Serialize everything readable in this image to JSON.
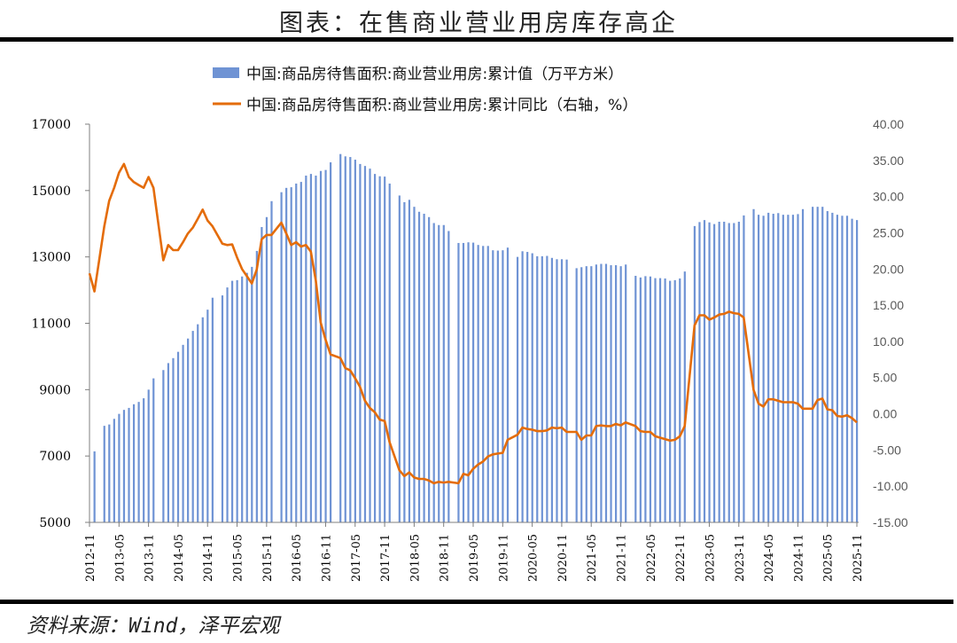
{
  "title": "图表：在售商业营业用房库存高企",
  "source": "资料来源：Wind，泽平宏观",
  "chart_data": {
    "type": "bar+line",
    "legend_position": "top",
    "grid": false,
    "colors": {
      "bar": "#6f93d4",
      "line": "#e46c0a"
    },
    "left_axis": {
      "ylim": [
        5000,
        17000
      ],
      "ticks": [
        "5000",
        "7000",
        "9000",
        "11000",
        "13000",
        "15000",
        "17000"
      ]
    },
    "right_axis": {
      "ylim": [
        -15,
        40
      ],
      "ticks": [
        "-15.00",
        "-10.00",
        "-5.00",
        "0.00",
        "5.00",
        "10.00",
        "15.00",
        "20.00",
        "25.00",
        "30.00",
        "35.00",
        "40.00"
      ]
    },
    "x_tick_labels": [
      "2012-11",
      "2013-05",
      "2013-11",
      "2014-05",
      "2014-11",
      "2015-05",
      "2015-11",
      "2016-05",
      "2016-11",
      "2017-05",
      "2017-11",
      "2018-05",
      "2018-11",
      "2019-05",
      "2019-11",
      "2020-05",
      "2020-11",
      "2021-05",
      "2021-11",
      "2022-05",
      "2022-11",
      "2023-05",
      "2023-11",
      "2024-05",
      "2024-11",
      "2025-05",
      "2025-11"
    ],
    "categories": [
      "2012-11",
      "2012-12",
      "2013-01",
      "2013-02",
      "2013-03",
      "2013-04",
      "2013-05",
      "2013-06",
      "2013-07",
      "2013-08",
      "2013-09",
      "2013-10",
      "2013-11",
      "2013-12",
      "2014-01",
      "2014-02",
      "2014-03",
      "2014-04",
      "2014-05",
      "2014-06",
      "2014-07",
      "2014-08",
      "2014-09",
      "2014-10",
      "2014-11",
      "2014-12",
      "2015-01",
      "2015-02",
      "2015-03",
      "2015-04",
      "2015-05",
      "2015-06",
      "2015-07",
      "2015-08",
      "2015-09",
      "2015-10",
      "2015-11",
      "2015-12",
      "2016-01",
      "2016-02",
      "2016-03",
      "2016-04",
      "2016-05",
      "2016-06",
      "2016-07",
      "2016-08",
      "2016-09",
      "2016-10",
      "2016-11",
      "2016-12",
      "2017-01",
      "2017-02",
      "2017-03",
      "2017-04",
      "2017-05",
      "2017-06",
      "2017-07",
      "2017-08",
      "2017-09",
      "2017-10",
      "2017-11",
      "2017-12",
      "2018-01",
      "2018-02",
      "2018-03",
      "2018-04",
      "2018-05",
      "2018-06",
      "2018-07",
      "2018-08",
      "2018-09",
      "2018-10",
      "2018-11",
      "2018-12",
      "2019-01",
      "2019-02",
      "2019-03",
      "2019-04",
      "2019-05",
      "2019-06",
      "2019-07",
      "2019-08",
      "2019-09",
      "2019-10",
      "2019-11",
      "2019-12",
      "2020-01",
      "2020-02",
      "2020-03",
      "2020-04",
      "2020-05",
      "2020-06",
      "2020-07",
      "2020-08",
      "2020-09",
      "2020-10",
      "2020-11",
      "2020-12",
      "2021-01",
      "2021-02",
      "2021-03",
      "2021-04",
      "2021-05",
      "2021-06",
      "2021-07",
      "2021-08",
      "2021-09",
      "2021-10",
      "2021-11",
      "2021-12",
      "2022-01",
      "2022-02",
      "2022-03",
      "2022-04",
      "2022-05",
      "2022-06",
      "2022-07",
      "2022-08",
      "2022-09",
      "2022-10",
      "2022-11",
      "2022-12",
      "2023-01",
      "2023-02",
      "2023-03",
      "2023-04",
      "2023-05",
      "2023-06",
      "2023-07",
      "2023-08",
      "2023-09",
      "2023-10",
      "2023-11",
      "2023-12",
      "2024-01",
      "2024-02",
      "2024-03",
      "2024-04",
      "2024-05",
      "2024-06",
      "2024-07",
      "2024-08",
      "2024-09",
      "2024-10",
      "2024-11",
      "2024-12",
      "2025-01",
      "2025-02",
      "2025-03",
      "2025-04",
      "2025-05",
      "2025-06",
      "2025-07",
      "2025-08",
      "2025-09",
      "2025-10",
      "2025-11"
    ],
    "series": [
      {
        "name": "中国:商品房待售面积:商业营业用房:累计值（万平方米）",
        "type": "bar",
        "axis": "left",
        "values": [
          null,
          7140,
          null,
          7910,
          7950,
          8120,
          8270,
          8390,
          8450,
          8560,
          8630,
          8740,
          9000,
          9340,
          null,
          9590,
          9800,
          9950,
          10140,
          10350,
          10540,
          10770,
          10970,
          11180,
          11410,
          11770,
          null,
          11840,
          12080,
          12280,
          12300,
          12410,
          12520,
          12700,
          13180,
          13900,
          14200,
          14680,
          null,
          14950,
          15080,
          15100,
          15210,
          15260,
          15450,
          15500,
          15450,
          15590,
          15620,
          15850,
          null,
          16100,
          16030,
          16010,
          15930,
          15800,
          15740,
          15660,
          15500,
          15430,
          15420,
          15210,
          null,
          14850,
          14650,
          14720,
          14510,
          14360,
          14300,
          14200,
          14020,
          13960,
          13960,
          13780,
          null,
          13420,
          13420,
          13440,
          13430,
          13360,
          13330,
          13330,
          13200,
          13190,
          13200,
          13280,
          null,
          13000,
          13170,
          13150,
          13110,
          13020,
          13020,
          13030,
          12970,
          12930,
          12930,
          12920,
          null,
          12660,
          12690,
          12720,
          12720,
          12770,
          12790,
          12790,
          12750,
          12750,
          12720,
          12770,
          null,
          12430,
          12380,
          12420,
          12410,
          12360,
          12360,
          12350,
          12280,
          12300,
          12350,
          12560,
          null,
          13930,
          14050,
          14110,
          14040,
          13990,
          14060,
          14060,
          14020,
          14020,
          14060,
          14250,
          null,
          14440,
          14270,
          14240,
          14330,
          14300,
          14320,
          14270,
          14270,
          14270,
          14290,
          14440,
          null,
          14510,
          14510,
          14510,
          14380,
          14330,
          14270,
          14240,
          14240,
          14150,
          14110
        ]
      },
      {
        "name": "中国:商品房待售面积:商业营业用房:累计同比（右轴，%）",
        "type": "line",
        "axis": "right",
        "values": [
          19.4,
          16.9,
          null,
          25.9,
          29.4,
          31.2,
          33.3,
          34.5,
          32.7,
          32.0,
          31.6,
          31.2,
          32.7,
          31.2,
          null,
          21.2,
          23.3,
          22.6,
          22.6,
          23.7,
          24.9,
          25.7,
          26.9,
          28.2,
          26.7,
          25.9,
          null,
          23.5,
          23.3,
          23.4,
          21.6,
          20.0,
          19.0,
          18.0,
          19.9,
          24.1,
          24.7,
          24.7,
          null,
          26.4,
          24.9,
          23.3,
          23.7,
          23.1,
          23.3,
          22.4,
          18.4,
          12.6,
          10.2,
          8.2,
          null,
          7.7,
          6.3,
          6.0,
          4.9,
          3.7,
          1.8,
          0.8,
          0.2,
          -0.8,
          -1.0,
          -3.9,
          null,
          -7.8,
          -8.6,
          -8.1,
          -8.8,
          -9.0,
          -9.0,
          -9.2,
          -9.6,
          -9.4,
          -9.5,
          -9.4,
          null,
          -9.6,
          -8.3,
          -8.5,
          -7.6,
          -7.0,
          -6.6,
          -5.9,
          -5.6,
          -5.5,
          -5.4,
          -3.6,
          null,
          -2.9,
          -1.9,
          -2.1,
          -2.2,
          -2.4,
          -2.4,
          -2.3,
          -1.9,
          -2.0,
          -1.9,
          -2.5,
          null,
          -2.5,
          -3.6,
          -3.0,
          -3.0,
          -1.7,
          -1.6,
          -1.7,
          -1.7,
          -1.4,
          -1.6,
          -1.2,
          null,
          -1.7,
          -2.4,
          -2.5,
          -2.5,
          -3.1,
          -3.3,
          -3.5,
          -3.7,
          -3.6,
          -3.1,
          -1.7,
          null,
          12.2,
          13.6,
          13.6,
          13.0,
          13.3,
          13.7,
          13.8,
          14.1,
          13.9,
          13.8,
          13.3,
          null,
          3.3,
          1.4,
          1.0,
          2.0,
          2.0,
          1.8,
          1.6,
          1.6,
          1.6,
          1.4,
          0.7,
          null,
          0.7,
          1.9,
          2.1,
          0.6,
          0.5,
          -0.3,
          -0.4,
          -0.2,
          -0.6,
          -1.2
        ]
      }
    ]
  }
}
